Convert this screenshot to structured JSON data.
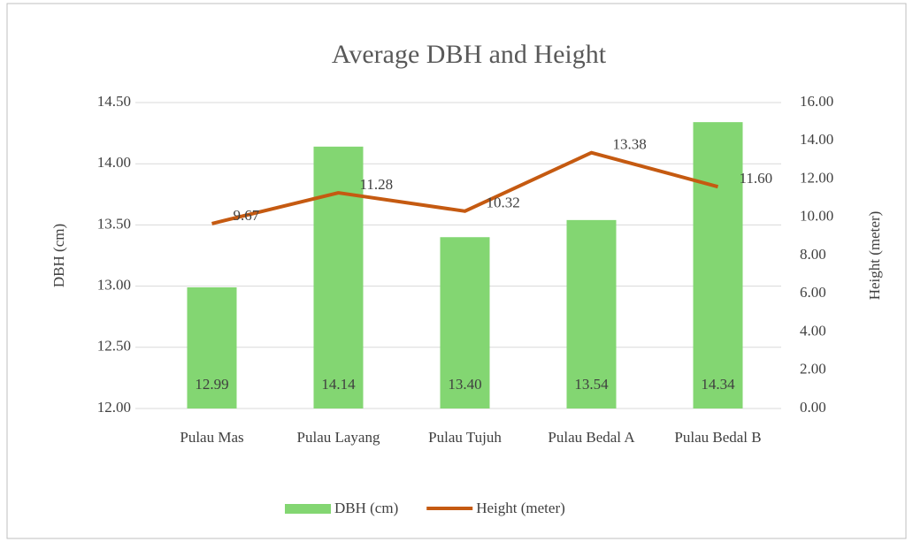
{
  "chart_data": {
    "type": "bar",
    "title": "Average DBH and Height",
    "categories": [
      "Pulau Mas",
      "Pulau Layang",
      "Pulau Tujuh",
      "Pulau Bedal A",
      "Pulau Bedal B"
    ],
    "series": [
      {
        "name": "DBH (cm)",
        "type": "bar",
        "color": "#83d672",
        "values": [
          12.99,
          14.14,
          13.4,
          13.54,
          14.34
        ],
        "value_labels": [
          "12.99",
          "14.14",
          "13.40",
          "13.54",
          "14.34"
        ]
      },
      {
        "name": "Height (meter)",
        "type": "line",
        "axis": "y2",
        "color": "#c55a11",
        "values": [
          9.67,
          11.28,
          10.32,
          13.38,
          11.6
        ],
        "value_labels": [
          "9.67",
          "11.28",
          "10.32",
          "13.38",
          "11.60"
        ]
      }
    ],
    "ylabel": "DBH (cm)",
    "y2label": "Height (meter)",
    "ylim": [
      12,
      14.5
    ],
    "yticks": [
      {
        "value": 12,
        "label": "12.00"
      },
      {
        "value": 12.5,
        "label": "12.50"
      },
      {
        "value": 13,
        "label": "13.00"
      },
      {
        "value": 13.5,
        "label": "13.50"
      },
      {
        "value": 14,
        "label": "14.00"
      },
      {
        "value": 14.5,
        "label": "14.50"
      }
    ],
    "y2lim": [
      0,
      16
    ],
    "y2ticks": [
      {
        "value": 0,
        "label": "0.00"
      },
      {
        "value": 2,
        "label": "2.00"
      },
      {
        "value": 4,
        "label": "4.00"
      },
      {
        "value": 6,
        "label": "6.00"
      },
      {
        "value": 8,
        "label": "8.00"
      },
      {
        "value": 10,
        "label": "10.00"
      },
      {
        "value": 12,
        "label": "12.00"
      },
      {
        "value": 14,
        "label": "14.00"
      },
      {
        "value": 16,
        "label": "16.00"
      }
    ],
    "grid": true,
    "legend": "bottom"
  }
}
